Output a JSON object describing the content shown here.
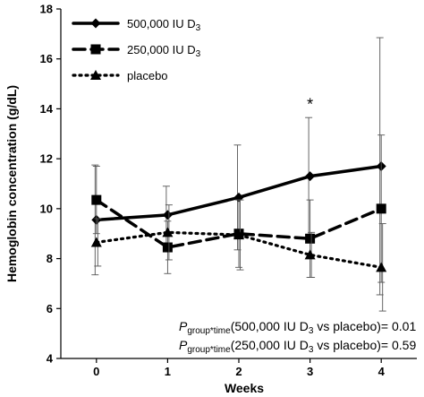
{
  "chart_data": {
    "type": "line",
    "xlabel": "Weeks",
    "ylabel": "Hemoglobin concentration (g/dL)",
    "x": [
      0,
      1,
      2,
      3,
      4
    ],
    "xlim": [
      -0.5,
      4.5
    ],
    "ylim": [
      4,
      18
    ],
    "yticks": [
      4,
      6,
      8,
      10,
      12,
      14,
      16,
      18
    ],
    "legend_position": "top-left",
    "grid": false,
    "series": [
      {
        "name": "500,000 IU D",
        "name_sub": "3",
        "marker": "diamond",
        "line": "solid",
        "values": [
          9.55,
          9.75,
          10.45,
          11.3,
          11.7
        ],
        "error": [
          2.2,
          1.15,
          2.1,
          2.35,
          5.15
        ]
      },
      {
        "name": "250,000 IU D",
        "name_sub": "3",
        "marker": "square",
        "line": "dashed",
        "values": [
          10.35,
          8.45,
          9.0,
          8.8,
          10.0
        ],
        "error": [
          1.35,
          1.05,
          1.35,
          1.55,
          2.95
        ]
      },
      {
        "name": "placebo",
        "name_sub": "",
        "marker": "triangle",
        "line": "dotted",
        "values": [
          8.65,
          9.05,
          8.95,
          8.15,
          7.65
        ],
        "error": [
          0.95,
          1.1,
          1.4,
          0.9,
          1.75
        ]
      }
    ],
    "annotations": {
      "star": {
        "text": "*",
        "x": 3,
        "y": 14.25
      },
      "stat1": {
        "p": "P",
        "sub": "group*time",
        "mid": "(500,000 IU D",
        "sub2": "3",
        "tail": " vs placebo)= 0.01"
      },
      "stat2": {
        "p": "P",
        "sub": "group*time",
        "mid": "(250,000 IU D",
        "sub2": "3",
        "tail": " vs placebo)= 0.59"
      }
    }
  }
}
